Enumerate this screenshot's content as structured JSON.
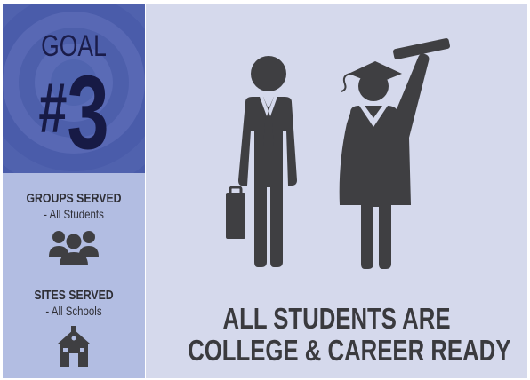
{
  "goal": {
    "word": "GOAL",
    "hash": "#",
    "number": "3"
  },
  "groups": {
    "title": "GROUPS SERVED",
    "value": "- All Students",
    "icon": "group-of-people-icon"
  },
  "sites": {
    "title": "SITES SERVED",
    "value": "- All Schools",
    "icon": "schoolhouse-icon"
  },
  "illustration": {
    "icon": "businessman-and-graduate-icon"
  },
  "headline": {
    "line1": "ALL STUDENTS ARE",
    "line2": "COLLEGE & CAREER READY"
  },
  "colors": {
    "goal_bg": "#4a5caa",
    "goal_text": "#171a45",
    "info_bg": "#b2bde2",
    "main_bg": "#d5d9ec",
    "icon": "#3f3f42",
    "text": "#3a3a3e"
  }
}
